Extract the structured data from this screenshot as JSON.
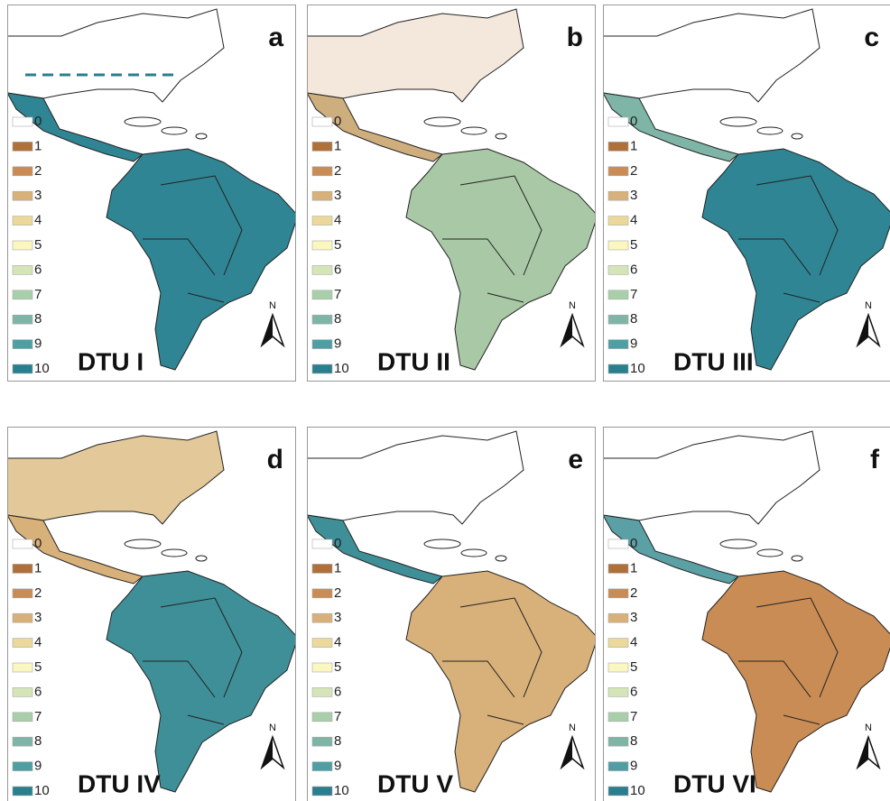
{
  "legend": {
    "labels": [
      "0",
      "1",
      "2",
      "3",
      "4",
      "5",
      "6",
      "7",
      "8",
      "9",
      "10"
    ],
    "colors": [
      "#ffffff",
      "#b0703a",
      "#c98c55",
      "#d8b07a",
      "#ecd89a",
      "#fbf7c0",
      "#d5e5b8",
      "#a9cfaa",
      "#7fb5a6",
      "#4f9ea3",
      "#2a7f8e"
    ]
  },
  "north_label": "N",
  "panels": [
    {
      "letter": "a",
      "label": "DTU I",
      "south_fill": "#2f8593",
      "central_fill": "#2f8593",
      "north_fill": "#ffffff"
    },
    {
      "letter": "b",
      "label": "DTU II",
      "south_fill": "#a9c9a6",
      "central_fill": "#cfae7e",
      "north_fill": "#f4e8dc"
    },
    {
      "letter": "c",
      "label": "DTU III",
      "south_fill": "#2f8593",
      "central_fill": "#7fb5a6",
      "north_fill": "#ffffff"
    },
    {
      "letter": "d",
      "label": "DTU IV",
      "south_fill": "#3f8f98",
      "central_fill": "#d8b07a",
      "north_fill": "#e3c99a"
    },
    {
      "letter": "e",
      "label": "DTU V",
      "south_fill": "#d8b07a",
      "central_fill": "#3f8f98",
      "north_fill": "#ffffff"
    },
    {
      "letter": "f",
      "label": "DTU VI",
      "south_fill": "#c98c55",
      "central_fill": "#5aa0a4",
      "north_fill": "#ffffff"
    }
  ]
}
